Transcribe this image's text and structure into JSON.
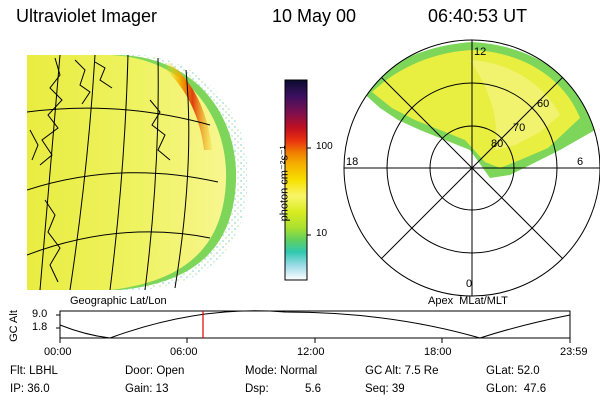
{
  "header": {
    "instrument": "Ultraviolet Imager",
    "date": "10 May 00",
    "time": "06:40:53 UT"
  },
  "colorbar": {
    "label": "photon cm⁻²s⁻¹",
    "ticks": [
      "100",
      "10"
    ],
    "colors": [
      "#0b0b2e",
      "#3a1060",
      "#7a1050",
      "#c01020",
      "#e83010",
      "#f07a00",
      "#f5b000",
      "#f7e000",
      "#f9f56a",
      "#d8ec20",
      "#a8e030",
      "#60d060",
      "#30c8b0",
      "#a0dce8",
      "#ffffff"
    ]
  },
  "map_left": {
    "caption": "Geographic Lat/Lon"
  },
  "map_right": {
    "caption": "Apex  MLat/MLT",
    "mlt_labels": {
      "top": "12",
      "left": "18",
      "right": "6",
      "bottom": "0"
    },
    "lat_labels": [
      "60",
      "70",
      "80"
    ]
  },
  "timeline": {
    "ylabel": "GC Alt",
    "yticks": [
      "9.0",
      "1.8"
    ],
    "xticks": [
      "00:00",
      "06:00",
      "12:00",
      "18:00",
      "23:59"
    ],
    "marker_time": "06:40:53"
  },
  "info": {
    "flt": "Flt: LBHL",
    "ip": "IP: 36.0",
    "door": "Door: Open",
    "gain": "Gain: 13",
    "mode": "Mode: Normal",
    "dsp": "Dsp:",
    "dsp_val": "5.6",
    "gcalt": "GC Alt: 7.5 Re",
    "seq": "Seq: 39",
    "glat": "GLat: 52.0",
    "glon": "GLon:  47.6"
  }
}
